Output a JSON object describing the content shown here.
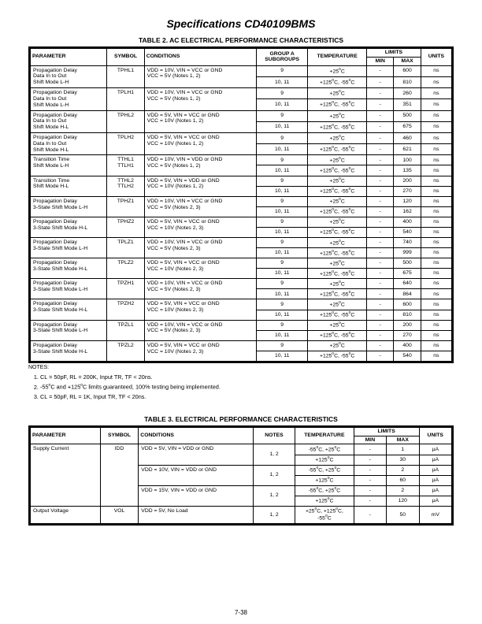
{
  "header": {
    "title": "Specifications CD40109BMS"
  },
  "footer": {
    "pagenum": "7-38"
  },
  "table2": {
    "title": "TABLE 2.  AC ELECTRICAL PERFORMANCE CHARACTERISTICS",
    "notes_label": "NOTES:",
    "columns": {
      "parameter": "PARAMETER",
      "symbol": "SYMBOL",
      "conditions": "CONDITIONS",
      "subgroups": "GROUP A\nSUBGROUPS",
      "temperature": "TEMPERATURE",
      "limits": "LIMITS",
      "min": "MIN",
      "max": "MAX",
      "units": "UNITS"
    },
    "groups": [
      {
        "param": "Propagation Delay\nData In to Out\nShift Mode L-H",
        "sym": "TPHL1",
        "cond": "VDD = 10V, VIN = VCC or GND\nVCC = 5V (Notes 1, 2)",
        "rows": [
          {
            "sub": "9",
            "temp": "+25°C",
            "min": "-",
            "max": "600",
            "units": "ns"
          },
          {
            "sub": "10, 11",
            "temp": "+125°C, -55°C",
            "min": "-",
            "max": "810",
            "units": "ns"
          }
        ]
      },
      {
        "param": "Propagation Delay\nData In to Out\nShift Mode L-H",
        "sym": "TPLH1",
        "cond": "VDD = 10V, VIN = VCC or GND\nVCC = 5V (Notes 1, 2)",
        "rows": [
          {
            "sub": "9",
            "temp": "+25°C",
            "min": "-",
            "max": "260",
            "units": "ns"
          },
          {
            "sub": "10, 11",
            "temp": "+125°C, -55°C",
            "min": "-",
            "max": "351",
            "units": "ns"
          }
        ]
      },
      {
        "param": "Propagation Delay\nData In to Out\nShift Mode H-L",
        "sym": "TPHL2",
        "cond": "VDD = 5V, VIN = VCC or GND\nVCC = 10V (Notes 1, 2)",
        "rows": [
          {
            "sub": "9",
            "temp": "+25°C",
            "min": "-",
            "max": "500",
            "units": "ns"
          },
          {
            "sub": "10, 11",
            "temp": "+125°C, -55°C",
            "min": "-",
            "max": "675",
            "units": "ns"
          }
        ]
      },
      {
        "param": "Propagation Delay\nData In to Out\nShift Mode H-L",
        "sym": "TPLH2",
        "cond": "VDD = 5V, VIN = VCC or GND\nVCC = 10V (Notes 1, 2)",
        "rows": [
          {
            "sub": "9",
            "temp": "+25°C",
            "min": "-",
            "max": "460",
            "units": "ns"
          },
          {
            "sub": "10, 11",
            "temp": "+125°C, -55°C",
            "min": "-",
            "max": "621",
            "units": "ns"
          }
        ]
      },
      {
        "param": "Transition Time\nShift Mode L-H",
        "sym": "TTHL1\nTTLH1",
        "cond": "VDD = 10V, VIN = VDD or GND\nVCC = 5V (Notes 1, 2)",
        "rows": [
          {
            "sub": "9",
            "temp": "+25°C",
            "min": "-",
            "max": "100",
            "units": "ns"
          },
          {
            "sub": "10, 11",
            "temp": "+125°C, -55°C",
            "min": "-",
            "max": "135",
            "units": "ns"
          }
        ]
      },
      {
        "param": "Transition Time\nShift Mode H-L",
        "sym": "TTHL2\nTTLH2",
        "cond": "VDD = 5V, VIN = VDD or GND\nVCC = 10V (Notes 1, 2)",
        "rows": [
          {
            "sub": "9",
            "temp": "+25°C",
            "min": "-",
            "max": "200",
            "units": "ns"
          },
          {
            "sub": "10, 11",
            "temp": "+125°C, -55°C",
            "min": "-",
            "max": "270",
            "units": "ns"
          }
        ]
      },
      {
        "param": "Propagation Delay\n3-State Shift Mode L-H",
        "sym": "TPHZ1",
        "cond": "VDD = 10V, VIN = VCC or GND\nVCC = 5V (Notes 2, 3)",
        "rows": [
          {
            "sub": "9",
            "temp": "+25°C",
            "min": "-",
            "max": "120",
            "units": "ns"
          },
          {
            "sub": "10, 11",
            "temp": "+125°C, -55°C",
            "min": "-",
            "max": "162",
            "units": "ns"
          }
        ]
      },
      {
        "param": "Propagation Delay\n3-State Shift Mode H-L",
        "sym": "TPHZ2",
        "cond": "VDD = 5V, VIN = VCC or GND\nVCC = 10V (Notes 2, 3)",
        "rows": [
          {
            "sub": "9",
            "temp": "+25°C",
            "min": "-",
            "max": "400",
            "units": "ns"
          },
          {
            "sub": "10, 11",
            "temp": "+125°C, -55°C",
            "min": "-",
            "max": "540",
            "units": "ns"
          }
        ]
      },
      {
        "param": "Propagation Delay\n3-State Shift Mode L-H",
        "sym": "TPLZ1",
        "cond": "VDD = 10V, VIN = VCC or GND\nVCC = 5V (Notes 2, 3)",
        "rows": [
          {
            "sub": "9",
            "temp": "+25°C",
            "min": "-",
            "max": "740",
            "units": "ns"
          },
          {
            "sub": "10, 11",
            "temp": "+125°C, -55°C",
            "min": "-",
            "max": "999",
            "units": "ns"
          }
        ]
      },
      {
        "param": "Propagation Delay\n3-State Shift Mode H-L",
        "sym": "TPLZ2",
        "cond": "VDD = 5V, VIN = VCC or GND\nVCC = 10V (Notes 2, 3)",
        "rows": [
          {
            "sub": "9",
            "temp": "+25°C",
            "min": "-",
            "max": "500",
            "units": "ns"
          },
          {
            "sub": "10, 11",
            "temp": "+125°C, -55°C",
            "min": "-",
            "max": "675",
            "units": "ns"
          }
        ]
      },
      {
        "param": "Propagation Delay\n3-State Shift Mode L-H",
        "sym": "TPZH1",
        "cond": "VDD = 10V, VIN = VCC or GND\nVCC = 5V (Notes 2, 3)",
        "rows": [
          {
            "sub": "9",
            "temp": "+25°C",
            "min": "-",
            "max": "640",
            "units": "ns"
          },
          {
            "sub": "10, 11",
            "temp": "+125°C, -55°C",
            "min": "-",
            "max": "864",
            "units": "ns"
          }
        ]
      },
      {
        "param": "Propagation Delay\n3-State Shift Mode H-L",
        "sym": "TPZH2",
        "cond": "VDD = 5V, VIN = VCC or GND\nVCC = 10V (Notes 2, 3)",
        "rows": [
          {
            "sub": "9",
            "temp": "+25°C",
            "min": "-",
            "max": "600",
            "units": "ns"
          },
          {
            "sub": "10, 11",
            "temp": "+125°C, -55°C",
            "min": "-",
            "max": "810",
            "units": "ns"
          }
        ]
      },
      {
        "param": "Propagation Delay\n3-State Shift Mode L-H",
        "sym": "TPZL1",
        "cond": "VDD = 10V, VIN = VCC or GND\nVCC = 5V (Notes 2, 3)",
        "rows": [
          {
            "sub": "9",
            "temp": "+25°C",
            "min": "-",
            "max": "200",
            "units": "ns"
          },
          {
            "sub": "10, 11",
            "temp": "+125°C, -55°C",
            "min": "-",
            "max": "270",
            "units": "ns"
          }
        ]
      },
      {
        "param": "Propagation Delay\n3-State Shift Mode H-L",
        "sym": "TPZL2",
        "cond": "VDD = 5V, VIN = VCC or GND\nVCC = 10V (Notes 2, 3)",
        "rows": [
          {
            "sub": "9",
            "temp": "+25°C",
            "min": "-",
            "max": "400",
            "units": "ns"
          },
          {
            "sub": "10, 11",
            "temp": "+125°C, -55°C",
            "min": "-",
            "max": "540",
            "units": "ns"
          }
        ]
      }
    ],
    "notes": [
      "CL = 50pF, RL = 200K, Input TR, TF < 20ns.",
      "-55°C and +125°C limits guaranteed, 100% testing being implemented.",
      "CL = 50pF, RL = 1K, Input TR, TF < 20ns."
    ]
  },
  "table3": {
    "title": "TABLE 3.  ELECTRICAL PERFORMANCE CHARACTERISTICS",
    "columns": {
      "parameter": "PARAMETER",
      "symbol": "SYMBOL",
      "conditions": "CONDITIONS",
      "notes": "NOTES",
      "temperature": "TEMPERATURE",
      "limits": "LIMITS",
      "min": "MIN",
      "max": "MAX",
      "units": "UNITS"
    },
    "rows": [
      {
        "param": "Supply Current",
        "paramSpan": 6,
        "sym": "IDD",
        "symSpan": 6,
        "cond": "VDD = 5V, VIN = VDD or GND",
        "condSpan": 2,
        "notes": "1, 2",
        "notesSpan": 2,
        "temp": "-55°C, +25°C",
        "min": "-",
        "max": "1",
        "units": "µA"
      },
      {
        "temp": "+125°C",
        "min": "-",
        "max": "30",
        "units": "µA"
      },
      {
        "cond": "VDD = 10V, VIN = VDD or GND",
        "condSpan": 2,
        "notes": "1, 2",
        "notesSpan": 2,
        "temp": "-55°C, +25°C",
        "min": "-",
        "max": "2",
        "units": "µA"
      },
      {
        "temp": "+125°C",
        "min": "-",
        "max": "60",
        "units": "µA"
      },
      {
        "cond": "VDD = 15V, VIN = VDD or GND",
        "condSpan": 2,
        "notes": "1, 2",
        "notesSpan": 2,
        "temp": "-55°C, +25°C",
        "min": "-",
        "max": "2",
        "units": "µA"
      },
      {
        "temp": "+125°C",
        "min": "-",
        "max": "120",
        "units": "µA"
      },
      {
        "param": "Output Voltage",
        "paramSpan": 1,
        "sym": "VOL",
        "symSpan": 1,
        "cond": "VDD = 5V, No Load",
        "condSpan": 1,
        "notes": "1, 2",
        "notesSpan": 1,
        "temp": "+25°C, +125°C,\n-55°C",
        "min": "-",
        "max": "50",
        "units": "mV"
      }
    ]
  }
}
